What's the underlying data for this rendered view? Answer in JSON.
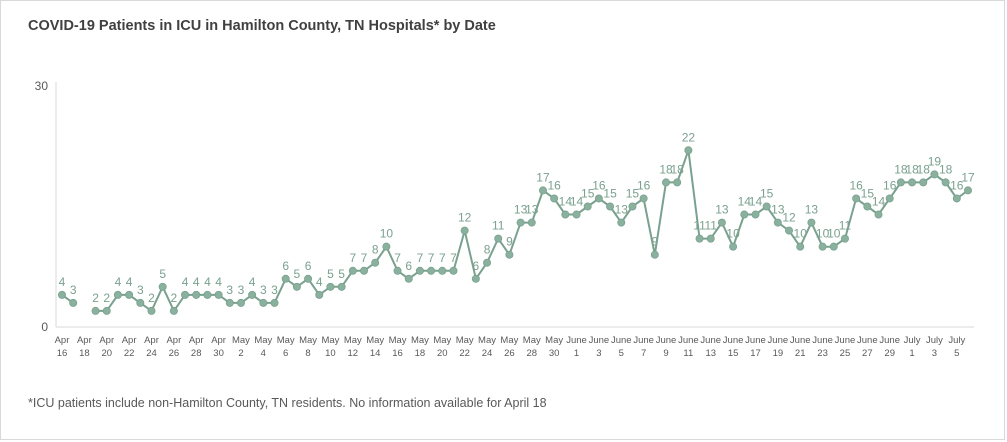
{
  "chart_data": {
    "type": "line",
    "title": "COVID-19 Patients in ICU in Hamilton County, TN Hospitals* by Date",
    "footnote": "*ICU patients include non-Hamilton County, TN residents. No information available for April 18",
    "xlabel": "",
    "ylabel": "",
    "ylim": [
      0,
      30
    ],
    "y_ticks": [
      "0",
      "30"
    ],
    "grid": false,
    "legend": "none",
    "line_color": "#7aa18f",
    "point_color": "#8ab09e",
    "x_tick_labels": [
      {
        "line1": "Apr",
        "line2": "16"
      },
      {
        "line1": "Apr",
        "line2": "18"
      },
      {
        "line1": "Apr",
        "line2": "20"
      },
      {
        "line1": "Apr",
        "line2": "22"
      },
      {
        "line1": "Apr",
        "line2": "24"
      },
      {
        "line1": "Apr",
        "line2": "26"
      },
      {
        "line1": "Apr",
        "line2": "28"
      },
      {
        "line1": "Apr",
        "line2": "30"
      },
      {
        "line1": "May",
        "line2": "2"
      },
      {
        "line1": "May",
        "line2": "4"
      },
      {
        "line1": "May",
        "line2": "6"
      },
      {
        "line1": "May",
        "line2": "8"
      },
      {
        "line1": "May",
        "line2": "10"
      },
      {
        "line1": "May",
        "line2": "12"
      },
      {
        "line1": "May",
        "line2": "14"
      },
      {
        "line1": "May",
        "line2": "16"
      },
      {
        "line1": "May",
        "line2": "18"
      },
      {
        "line1": "May",
        "line2": "20"
      },
      {
        "line1": "May",
        "line2": "22"
      },
      {
        "line1": "May",
        "line2": "24"
      },
      {
        "line1": "May",
        "line2": "26"
      },
      {
        "line1": "May",
        "line2": "28"
      },
      {
        "line1": "May",
        "line2": "30"
      },
      {
        "line1": "June",
        "line2": "1"
      },
      {
        "line1": "June",
        "line2": "3"
      },
      {
        "line1": "June",
        "line2": "5"
      },
      {
        "line1": "June",
        "line2": "7"
      },
      {
        "line1": "June",
        "line2": "9"
      },
      {
        "line1": "June",
        "line2": "11"
      },
      {
        "line1": "June",
        "line2": "13"
      },
      {
        "line1": "June",
        "line2": "15"
      },
      {
        "line1": "June",
        "line2": "17"
      },
      {
        "line1": "June",
        "line2": "19"
      },
      {
        "line1": "June",
        "line2": "21"
      },
      {
        "line1": "June",
        "line2": "23"
      },
      {
        "line1": "June",
        "line2": "25"
      },
      {
        "line1": "June",
        "line2": "27"
      },
      {
        "line1": "June",
        "line2": "29"
      },
      {
        "line1": "July",
        "line2": "1"
      },
      {
        "line1": "July",
        "line2": "3"
      },
      {
        "line1": "July",
        "line2": "5"
      }
    ],
    "x": [
      "Apr 16",
      "Apr 17",
      "Apr 18",
      "Apr 19",
      "Apr 20",
      "Apr 21",
      "Apr 22",
      "Apr 23",
      "Apr 24",
      "Apr 25",
      "Apr 26",
      "Apr 27",
      "Apr 28",
      "Apr 29",
      "Apr 30",
      "May 1",
      "May 2",
      "May 3",
      "May 4",
      "May 5",
      "May 6",
      "May 7",
      "May 8",
      "May 9",
      "May 10",
      "May 11",
      "May 12",
      "May 13",
      "May 14",
      "May 15",
      "May 16",
      "May 17",
      "May 18",
      "May 19",
      "May 20",
      "May 21",
      "May 22",
      "May 23",
      "May 24",
      "May 25",
      "May 26",
      "May 27",
      "May 28",
      "May 29",
      "May 30",
      "May 31",
      "June 1",
      "June 2",
      "June 3",
      "June 4",
      "June 5",
      "June 6",
      "June 7",
      "June 8",
      "June 9",
      "June 10",
      "June 11",
      "June 12",
      "June 13",
      "June 14",
      "June 15",
      "June 16",
      "June 17",
      "June 18",
      "June 19",
      "June 20",
      "June 21",
      "June 22",
      "June 23",
      "June 24",
      "June 25",
      "June 26",
      "June 27",
      "June 28",
      "June 29",
      "June 30",
      "July 1",
      "July 2",
      "July 3",
      "July 4",
      "July 5",
      "July 6"
    ],
    "values": [
      4,
      3,
      null,
      2,
      2,
      4,
      4,
      3,
      2,
      5,
      2,
      4,
      4,
      4,
      4,
      3,
      3,
      4,
      3,
      3,
      6,
      5,
      6,
      4,
      5,
      5,
      7,
      7,
      8,
      10,
      7,
      6,
      7,
      7,
      7,
      7,
      12,
      6,
      8,
      11,
      9,
      13,
      13,
      17,
      16,
      14,
      14,
      15,
      16,
      15,
      13,
      15,
      16,
      9,
      18,
      18,
      22,
      11,
      11,
      13,
      10,
      14,
      14,
      15,
      13,
      12,
      10,
      13,
      10,
      10,
      11,
      16,
      15,
      14,
      16,
      18,
      18,
      18,
      19,
      18,
      16,
      17
    ]
  }
}
